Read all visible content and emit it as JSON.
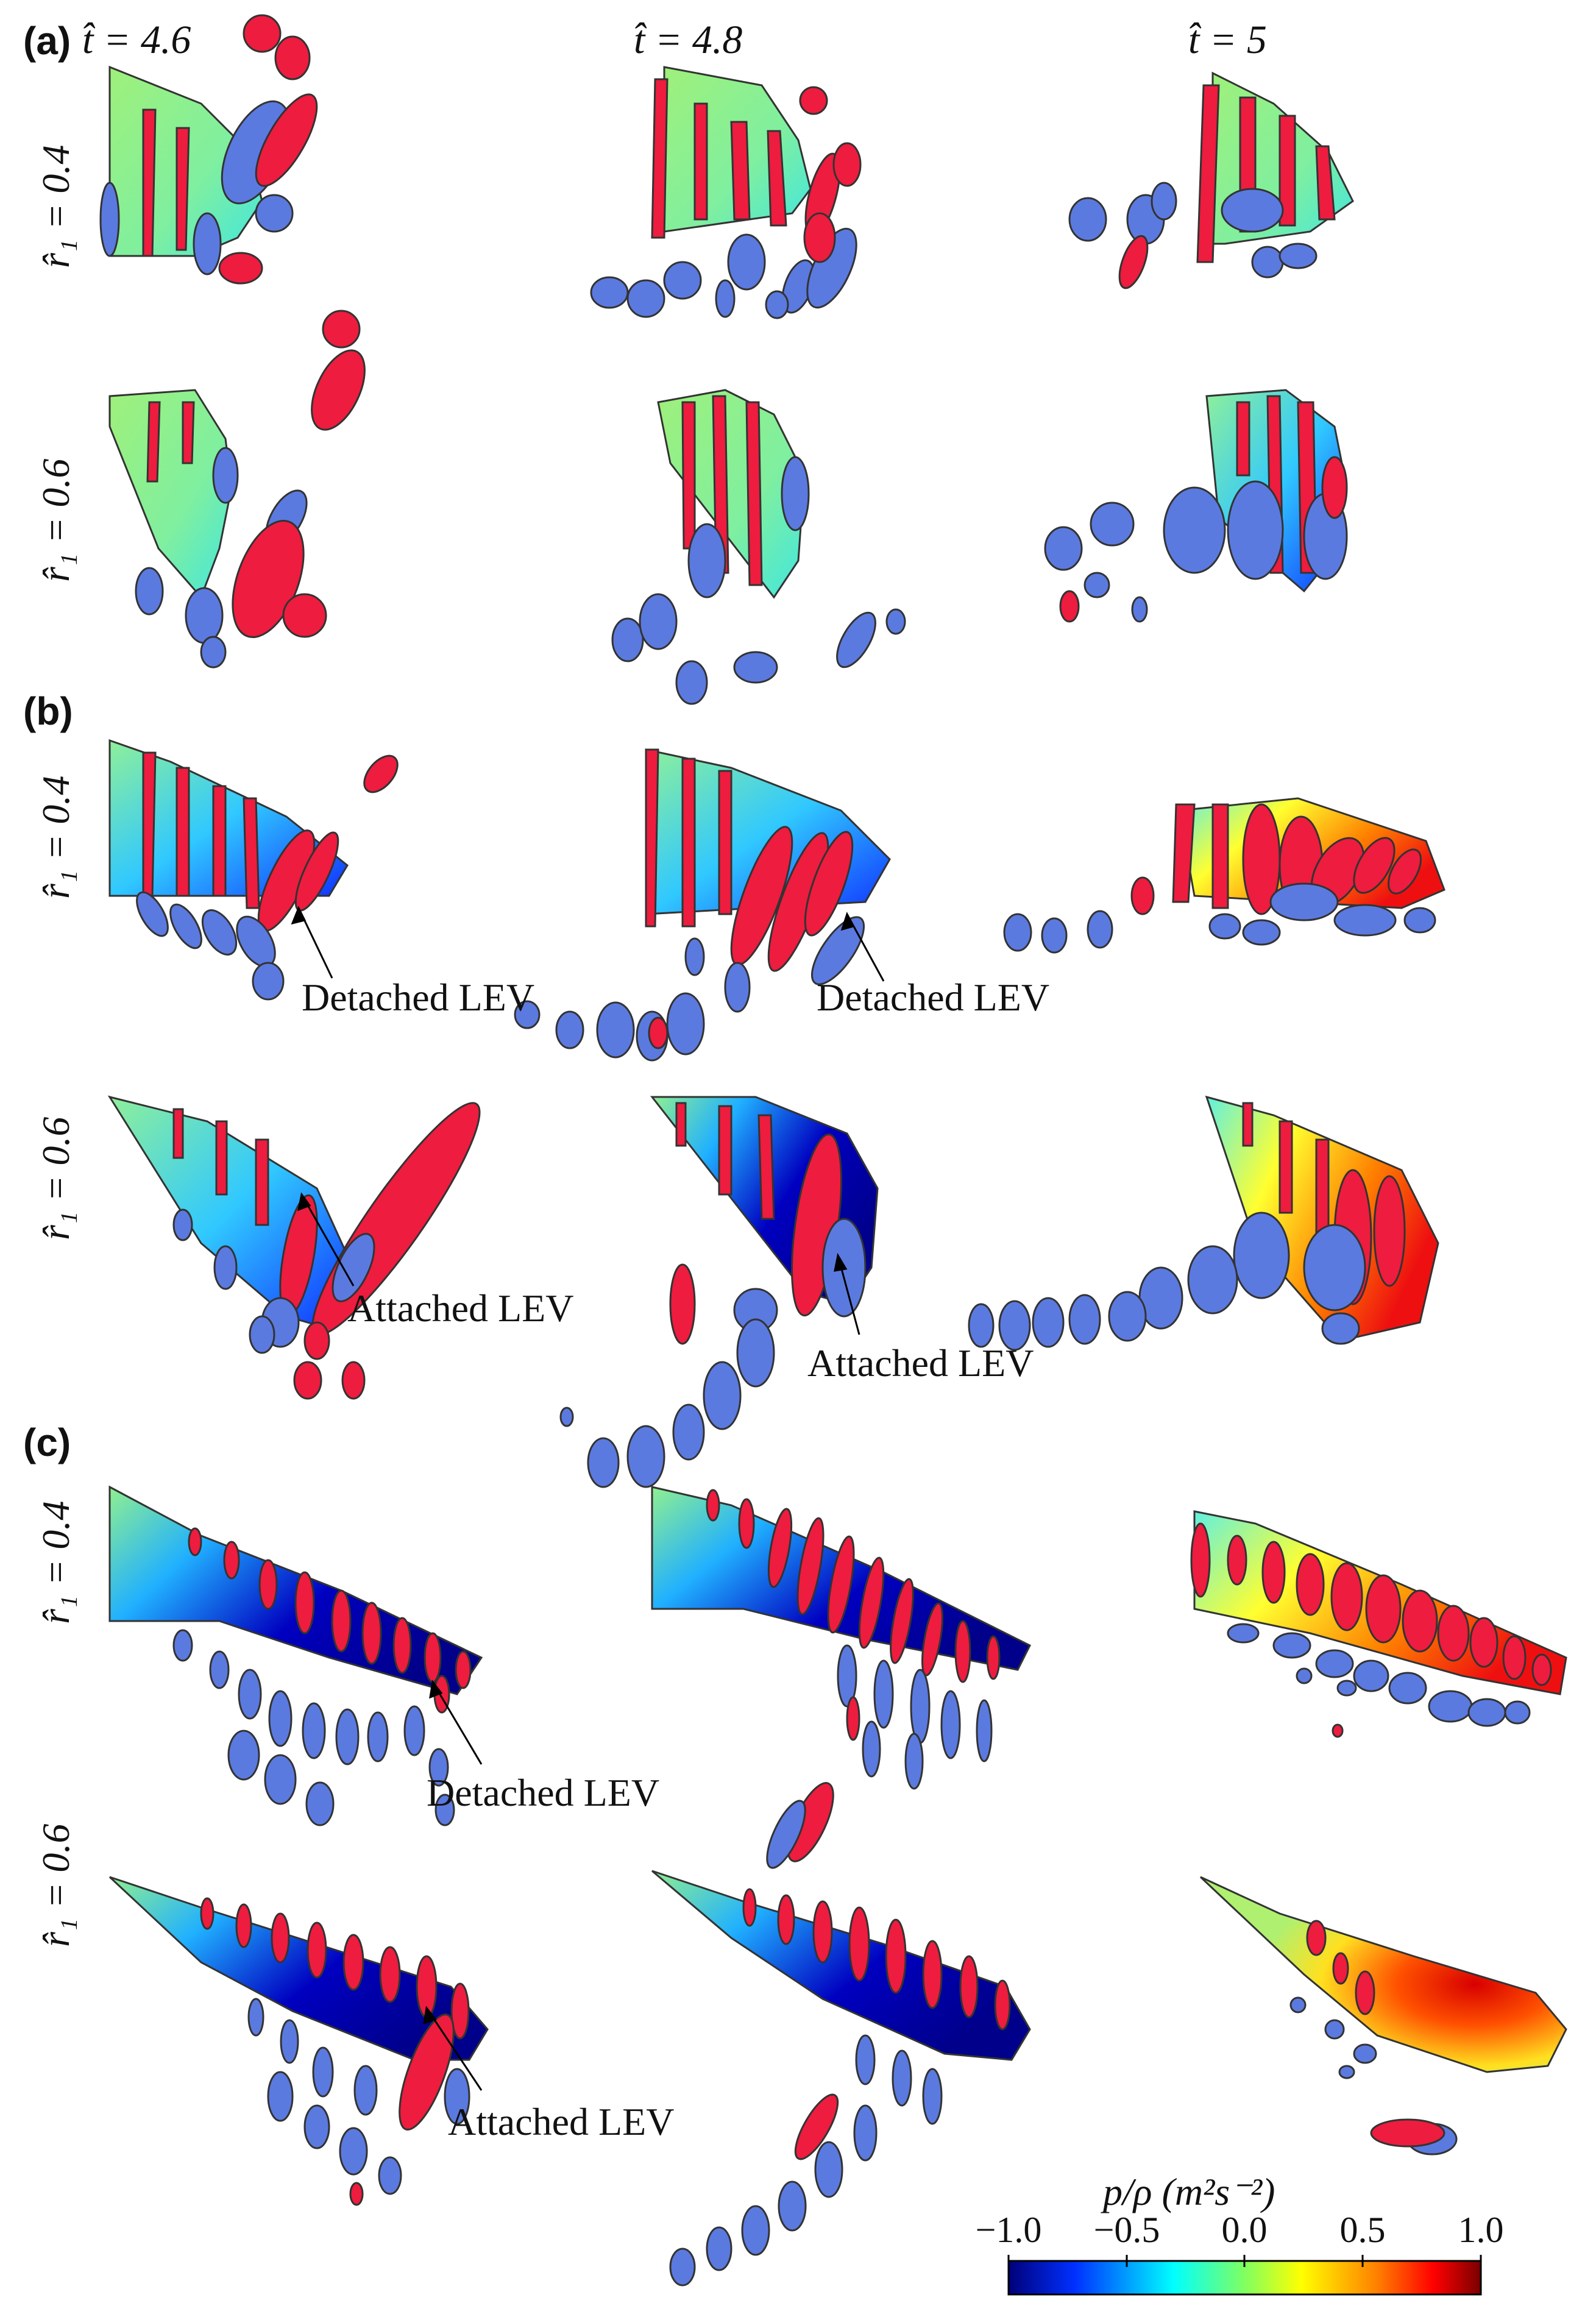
{
  "panels": [
    {
      "label": "(a)"
    },
    {
      "label": "(b)"
    },
    {
      "label": "(c)"
    }
  ],
  "columns": [
    {
      "label": "t̂ = 4.6"
    },
    {
      "label": "t̂ = 4.8"
    },
    {
      "label": "t̂ = 5"
    }
  ],
  "rows": [
    {
      "label": "r̂₁ = 0.4"
    },
    {
      "label": "r̂₁ = 0.6"
    }
  ],
  "annotations": {
    "detached": "Detached LEV",
    "attached": "Attached LEV"
  },
  "colorbar": {
    "title": "p/ρ (m²s⁻²)",
    "ticks": [
      "−1.0",
      "−0.5",
      "0.0",
      "0.5",
      "1.0"
    ],
    "range": [
      -1.0,
      1.0
    ],
    "colormap": [
      "#00007a",
      "#0030ff",
      "#00ffff",
      "#80ff60",
      "#ffff00",
      "#ff8000",
      "#ff0000",
      "#7a0000"
    ]
  },
  "colors": {
    "positive_vortex": "#ee1c3e",
    "negative_vortex": "#5b7ae0",
    "outline": "#333333"
  }
}
